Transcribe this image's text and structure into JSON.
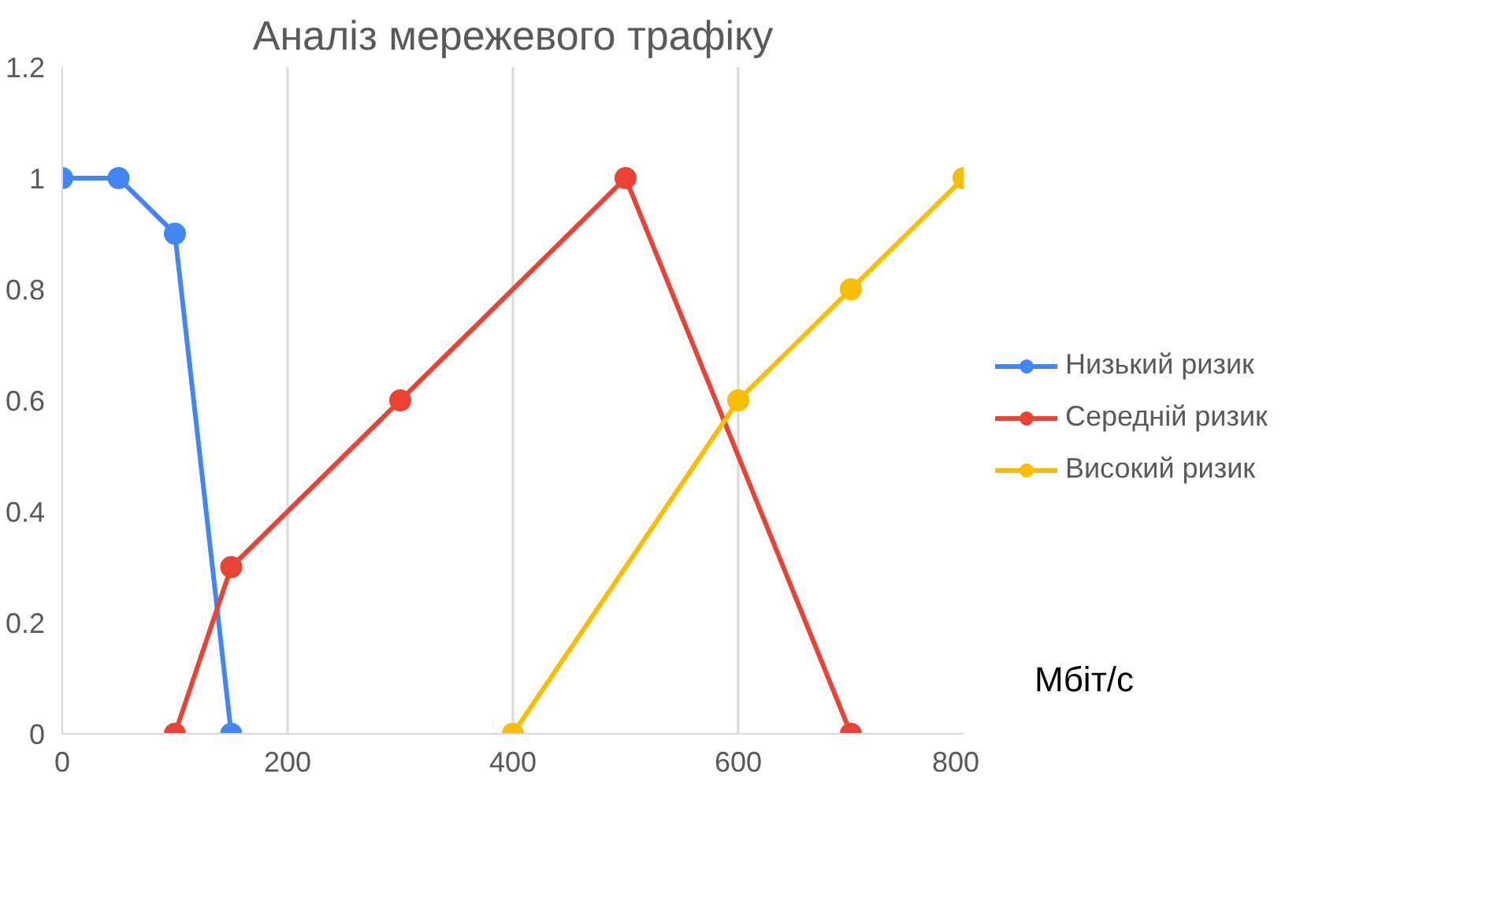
{
  "chart_data": {
    "type": "line",
    "title": "Аналіз мережевого трафіку",
    "xlabel": "Мбіт/с",
    "xlim": [
      0,
      800
    ],
    "xticks": [
      0,
      200,
      400,
      600,
      800
    ],
    "ylim": [
      0,
      1.2
    ],
    "yticks": [
      0,
      {
        "value": 0.2,
        "label": "0.2"
      },
      {
        "value": 0.4,
        "label": "0.4"
      },
      {
        "value": 0.6,
        "label": "0.6"
      },
      {
        "value": 0.8,
        "label": "0.8"
      },
      1,
      {
        "value": 1.2,
        "label": "1.2"
      }
    ],
    "grid": "x",
    "legend": "right",
    "marker": "circle",
    "line_style": "solid",
    "series": [
      {
        "name": "Низький ризик",
        "color": "#4285f4",
        "x": [
          0,
          50,
          100,
          150
        ],
        "values": [
          1,
          1,
          0.9,
          0
        ]
      },
      {
        "name": "Середній ризик",
        "color": "#ea4335",
        "x": [
          100,
          150,
          300,
          500,
          700
        ],
        "values": [
          0,
          0.3,
          0.6,
          1,
          0
        ]
      },
      {
        "name": "Високий ризик",
        "color": "#fbbc04",
        "x": [
          400,
          600,
          700,
          800
        ],
        "values": [
          0,
          0.6,
          0.8,
          1
        ]
      }
    ]
  }
}
